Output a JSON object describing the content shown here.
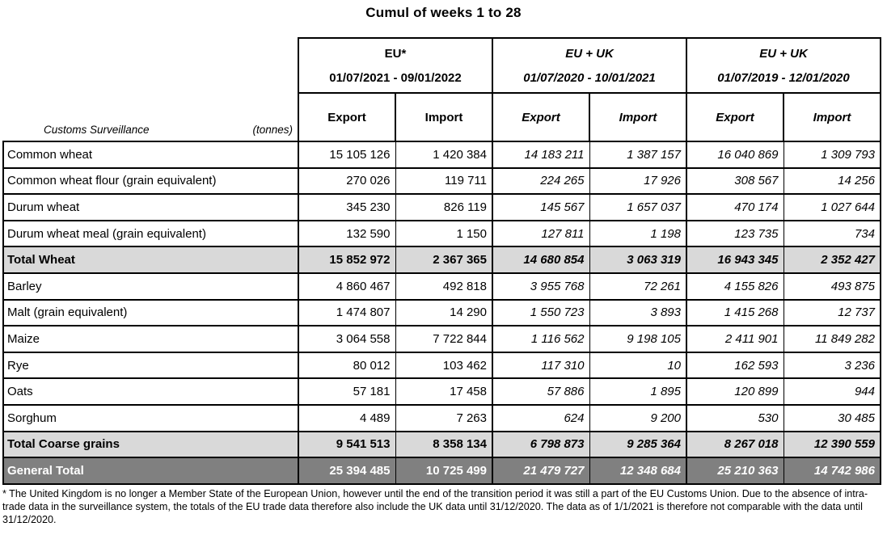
{
  "title": "Cumul of weeks 1 to 28",
  "table": {
    "corner": {
      "title": "Customs Surveillance",
      "unit": "(tonnes)"
    },
    "groups": [
      {
        "name": "EU*",
        "period": "01/07/2021 - 09/01/2022",
        "italic": false
      },
      {
        "name": "EU + UK",
        "period": "01/07/2020 - 10/01/2021",
        "italic": true
      },
      {
        "name": "EU + UK",
        "period": "01/07/2019 - 12/01/2020",
        "italic": true
      }
    ],
    "col_headers": [
      "Export",
      "Import"
    ],
    "rows": [
      {
        "label": "Common wheat",
        "style": "normal",
        "values": [
          "15 105 126",
          "1 420 384",
          "14 183 211",
          "1 387 157",
          "16 040 869",
          "1 309 793"
        ]
      },
      {
        "label": "Common wheat flour (grain equivalent)",
        "style": "normal",
        "values": [
          "270 026",
          "119 711",
          "224 265",
          "17 926",
          "308 567",
          "14 256"
        ]
      },
      {
        "label": "Durum wheat",
        "style": "normal",
        "values": [
          "345 230",
          "826 119",
          "145 567",
          "1 657 037",
          "470 174",
          "1 027 644"
        ]
      },
      {
        "label": "Durum wheat meal (grain equivalent)",
        "style": "normal",
        "values": [
          "132 590",
          "1 150",
          "127 811",
          "1 198",
          "123 735",
          "734"
        ]
      },
      {
        "label": "Total Wheat",
        "style": "subtotal",
        "values": [
          "15 852 972",
          "2 367 365",
          "14 680 854",
          "3 063 319",
          "16 943 345",
          "2 352 427"
        ]
      },
      {
        "label": "Barley",
        "style": "normal",
        "values": [
          "4 860 467",
          "492 818",
          "3 955 768",
          "72 261",
          "4 155 826",
          "493 875"
        ]
      },
      {
        "label": "Malt (grain equivalent)",
        "style": "normal",
        "values": [
          "1 474 807",
          "14 290",
          "1 550 723",
          "3 893",
          "1 415 268",
          "12 737"
        ]
      },
      {
        "label": "Maize",
        "style": "normal",
        "values": [
          "3 064 558",
          "7 722 844",
          "1 116 562",
          "9 198 105",
          "2 411 901",
          "11 849 282"
        ]
      },
      {
        "label": "Rye",
        "style": "normal",
        "values": [
          "80 012",
          "103 462",
          "117 310",
          "10",
          "162 593",
          "3 236"
        ]
      },
      {
        "label": "Oats",
        "style": "normal",
        "values": [
          "57 181",
          "17 458",
          "57 886",
          "1 895",
          "120 899",
          "944"
        ]
      },
      {
        "label": "Sorghum",
        "style": "normal",
        "values": [
          "4 489",
          "7 263",
          "624",
          "9 200",
          "530",
          "30 485"
        ]
      },
      {
        "label": "Total Coarse grains",
        "style": "subtotal",
        "values": [
          "9 541 513",
          "8 358 134",
          "6 798 873",
          "9 285 364",
          "8 267 018",
          "12 390 559"
        ]
      },
      {
        "label": "General Total",
        "style": "grand_total",
        "values": [
          "25 394 485",
          "10 725 499",
          "21 479 727",
          "12 348 684",
          "25 210 363",
          "14 742 986"
        ]
      }
    ]
  },
  "footnote": "* The United Kingdom is no longer a Member State of the European Union, however until the end of the transition period it was still a part of the EU Customs Union. Due to the absence of intra-trade data in the surveillance system, the totals of the EU trade data therefore also include the UK data until 31/12/2020. The data as of 1/1/2021 is therefore not comparable with the data until 31/12/2020.",
  "colors": {
    "subtotal_bg": "#d9d9d9",
    "grand_total_bg": "#808080",
    "grand_total_text": "#ffffff",
    "border": "#000000"
  }
}
